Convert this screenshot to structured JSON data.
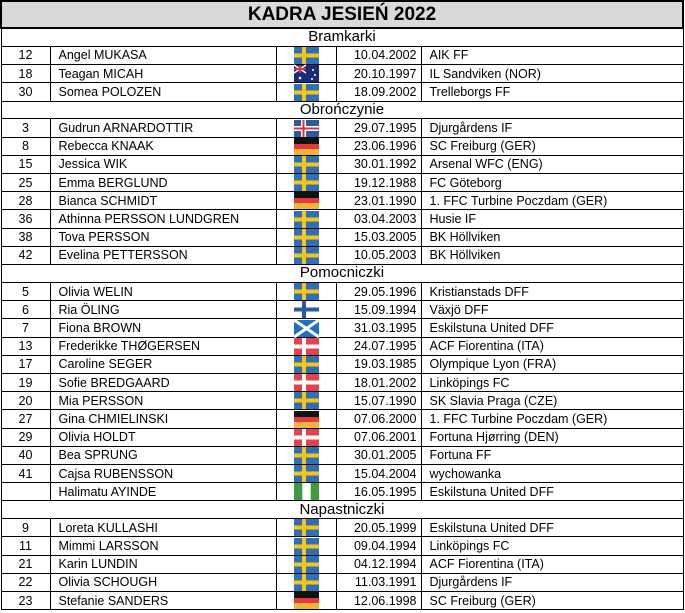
{
  "title": "KADRA JESIEŃ 2022",
  "flag_colors": {
    "se": [
      "#2f6fb3",
      "#f5c518"
    ],
    "dk": [
      "#e0444f",
      "#ffffff"
    ],
    "de": [
      "#111111",
      "#e03a3e",
      "#f4b43a"
    ],
    "fi": [
      "#ffffff",
      "#2b5aa6"
    ],
    "is": [
      "#2b5aa6",
      "#ffffff",
      "#d8323a"
    ],
    "scot": [
      "#1f6fc4",
      "#ffffff"
    ],
    "ng": [
      "#3d9a3d",
      "#ffffff"
    ],
    "au": [
      "#1c2a7a",
      "#ffffff",
      "#d8323a"
    ]
  },
  "sections": [
    {
      "name": "Bramkarki",
      "players": [
        [
          "12",
          "Angel MUKASA",
          "se",
          "10.04.2002",
          "AIK FF"
        ],
        [
          "18",
          "Teagan MICAH",
          "au",
          "20.10.1997",
          "IL Sandviken (NOR)"
        ],
        [
          "30",
          "Somea POLOZEN",
          "se",
          "18.09.2002",
          "Trelleborgs FF"
        ]
      ]
    },
    {
      "name": "Obrończynie",
      "players": [
        [
          "3",
          "Gudrun ARNARDOTTIR",
          "is",
          "29.07.1995",
          "Djurgårdens IF"
        ],
        [
          "8",
          "Rebecca KNAAK",
          "de",
          "23.06.1996",
          "SC Freiburg (GER)"
        ],
        [
          "15",
          "Jessica WIK",
          "se",
          "30.01.1992",
          "Arsenal WFC (ENG)"
        ],
        [
          "25",
          "Emma BERGLUND",
          "se",
          "19.12.1988",
          "FC Göteborg"
        ],
        [
          "28",
          "Bianca SCHMIDT",
          "de",
          "23.01.1990",
          "1. FFC Turbine Poczdam (GER)"
        ],
        [
          "36",
          "Athinna PERSSON LUNDGREN",
          "se",
          "03.04.2003",
          "Husie IF"
        ],
        [
          "38",
          "Tova PERSSON",
          "se",
          "15.03.2005",
          "BK Höllviken"
        ],
        [
          "42",
          "Evelina PETTERSSON",
          "se",
          "10.05.2003",
          "BK Höllviken"
        ]
      ]
    },
    {
      "name": "Pomocniczki",
      "players": [
        [
          "5",
          "Olivia WELIN",
          "se",
          "29.05.1996",
          "Kristianstads DFF"
        ],
        [
          "6",
          "Ria ÖLING",
          "fi",
          "15.09.1994",
          "Växjö DFF"
        ],
        [
          "7",
          "Fiona BROWN",
          "scot",
          "31.03.1995",
          "Eskilstuna United DFF"
        ],
        [
          "13",
          "Frederikke THØGERSEN",
          "dk",
          "24.07.1995",
          "ACF Fiorentina (ITA)"
        ],
        [
          "17",
          "Caroline SEGER",
          "se",
          "19.03.1985",
          "Olympique Lyon (FRA)"
        ],
        [
          "19",
          "Sofie BREDGAARD",
          "dk",
          "18.01.2002",
          "Linköpings FC"
        ],
        [
          "20",
          "Mia PERSSON",
          "se",
          "15.07.1990",
          "SK Slavia Praga (CZE)"
        ],
        [
          "27",
          "Gina CHMIELINSKI",
          "de",
          "07.06.2000",
          "1. FFC Turbine Poczdam (GER)"
        ],
        [
          "29",
          "Olivia HOLDT",
          "dk",
          "07.06.2001",
          "Fortuna Hjørring (DEN)"
        ],
        [
          "40",
          "Bea SPRUNG",
          "se",
          "30.01.2005",
          "Fortuna FF"
        ],
        [
          "41",
          "Cajsa RUBENSSON",
          "se",
          "15.04.2004",
          "wychowanka"
        ],
        [
          "",
          "Halimatu AYINDE",
          "ng",
          "16.05.1995",
          "Eskilstuna United DFF"
        ]
      ]
    },
    {
      "name": "Napastniczki",
      "players": [
        [
          "9",
          "Loreta KULLASHI",
          "se",
          "20.05.1999",
          "Eskilstuna United DFF"
        ],
        [
          "11",
          "Mimmi LARSSON",
          "se",
          "09.04.1994",
          "Linköpings FC"
        ],
        [
          "21",
          "Karin LUNDIN",
          "se",
          "04.12.1994",
          "ACF Fiorentina (ITA)"
        ],
        [
          "22",
          "Olivia SCHOUGH",
          "se",
          "11.03.1991",
          "Djurgårdens IF"
        ],
        [
          "23",
          "Stefanie SANDERS",
          "de",
          "12.06.1998",
          "SC Freiburg (GER)"
        ]
      ]
    }
  ]
}
